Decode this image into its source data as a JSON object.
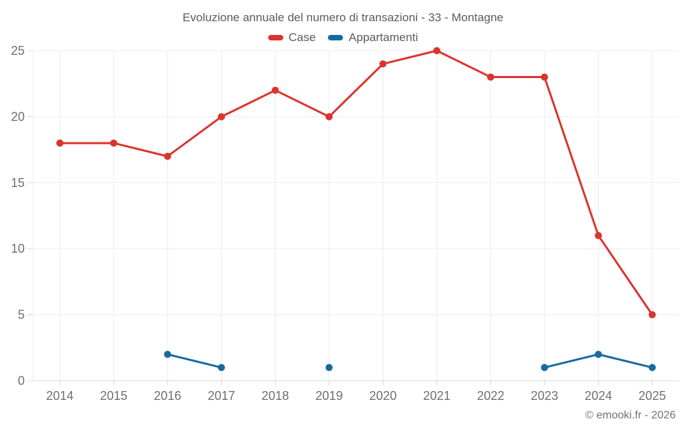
{
  "header": {
    "title": "Evoluzione annuale del numero di transazioni - 33 - Montagne"
  },
  "legend": {
    "items": [
      {
        "label": "Case",
        "color": "#da342e"
      },
      {
        "label": "Appartamenti",
        "color": "#176a9f"
      }
    ]
  },
  "footer": {
    "credit": "© emooki.fr - 2026"
  },
  "colors": {
    "background": "#ffffff",
    "grid_line": "#ececec",
    "axis_line": "#d7d7d7",
    "axis_label": "#6f6f6f",
    "title_text": "#5b5b5b",
    "case_red": "#da342e",
    "appartamenti_blue": "#176a9f"
  },
  "chart_data": {
    "type": "line",
    "title": "Evoluzione annuale del numero di transazioni - 33 - Montagne",
    "categories": [
      "2014",
      "2015",
      "2016",
      "2017",
      "2018",
      "2019",
      "2020",
      "2021",
      "2022",
      "2023",
      "2024",
      "2025"
    ],
    "series": [
      {
        "name": "Case",
        "color": "#da342e",
        "values": [
          18,
          18,
          17,
          20,
          22,
          20,
          24,
          25,
          23,
          23,
          11,
          5
        ]
      },
      {
        "name": "Appartamenti",
        "color": "#176a9f",
        "values": [
          null,
          null,
          2,
          1,
          null,
          1,
          null,
          null,
          null,
          1,
          2,
          1
        ]
      }
    ],
    "xlabel": "",
    "ylabel": "",
    "ylim": [
      0,
      25
    ],
    "yticks": [
      0,
      5,
      10,
      15,
      20,
      25
    ],
    "grid": true,
    "legend_position": "top"
  }
}
